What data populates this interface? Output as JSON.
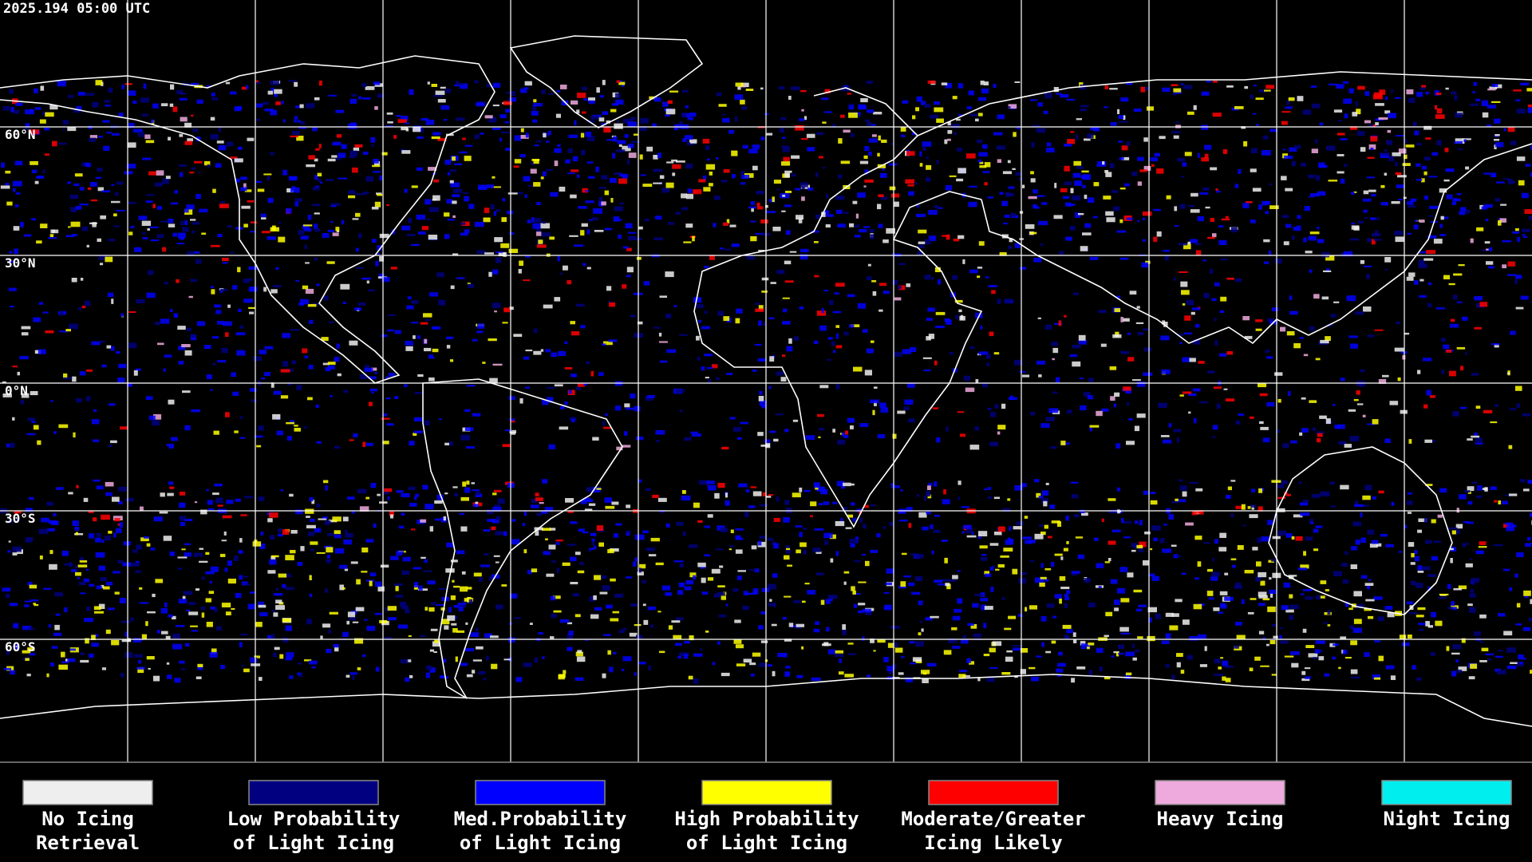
{
  "header": {
    "timestamp": "2025.194 05:00 UTC"
  },
  "map": {
    "latitude_labels": [
      "60°N",
      "30°N",
      "0°N",
      "30°S",
      "60°S"
    ]
  },
  "legend": {
    "items": [
      {
        "lines": [
          "No Icing",
          "Retrieval"
        ],
        "color": "#eeeeee"
      },
      {
        "lines": [
          "Low Probability",
          "of Light Icing"
        ],
        "color": "#000080"
      },
      {
        "lines": [
          "Med.Probability",
          "of Light Icing"
        ],
        "color": "#0000ff"
      },
      {
        "lines": [
          "High Probability",
          "of Light Icing"
        ],
        "color": "#ffff00"
      },
      {
        "lines": [
          "Moderate/Greater",
          "Icing Likely"
        ],
        "color": "#ff0000"
      },
      {
        "lines": [
          "Heavy Icing"
        ],
        "color": "#eeaadd"
      },
      {
        "lines": [
          "Night Icing"
        ],
        "color": "#00eeee"
      }
    ]
  }
}
